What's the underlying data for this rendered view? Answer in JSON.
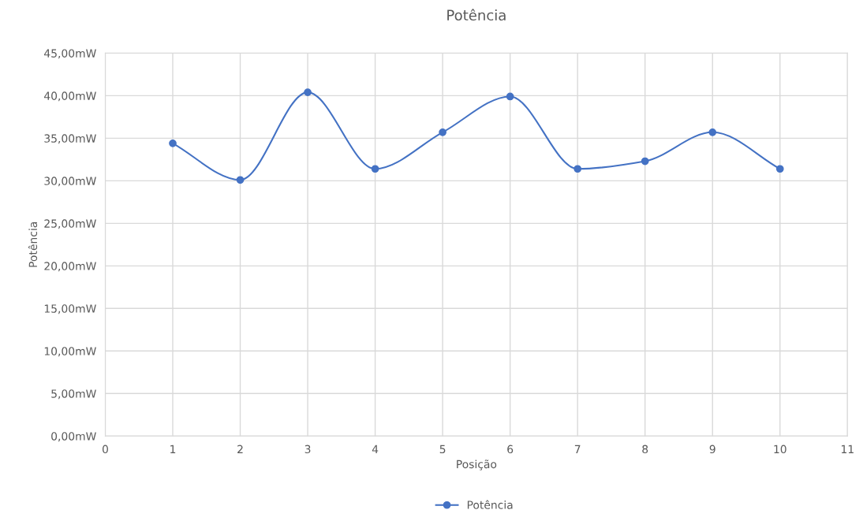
{
  "chart_data": {
    "type": "line",
    "title": "Potência",
    "xlabel": "Posição",
    "ylabel": "Potência",
    "x": [
      1,
      2,
      3,
      4,
      5,
      6,
      7,
      8,
      9,
      10
    ],
    "series": [
      {
        "name": "Potência",
        "color": "#4472c4",
        "values": [
          34.4,
          30.1,
          40.4,
          31.4,
          35.7,
          39.9,
          31.4,
          32.3,
          35.7,
          31.4
        ]
      }
    ],
    "xlim": [
      0,
      11
    ],
    "xticks": [
      0,
      1,
      2,
      3,
      4,
      5,
      6,
      7,
      8,
      9,
      10,
      11
    ],
    "ylim": [
      0,
      45
    ],
    "yticks": [
      {
        "value": 0,
        "label": "0,00mW"
      },
      {
        "value": 5,
        "label": "5,00mW"
      },
      {
        "value": 10,
        "label": "10,00mW"
      },
      {
        "value": 15,
        "label": "15,00mW"
      },
      {
        "value": 20,
        "label": "20,00mW"
      },
      {
        "value": 25,
        "label": "25,00mW"
      },
      {
        "value": 30,
        "label": "30,00mW"
      },
      {
        "value": 35,
        "label": "35,00mW"
      },
      {
        "value": 40,
        "label": "40,00mW"
      },
      {
        "value": 45,
        "label": "45,00mW"
      }
    ],
    "grid": true,
    "legend": "bottom",
    "marker": "circle",
    "line_style": "solid"
  }
}
